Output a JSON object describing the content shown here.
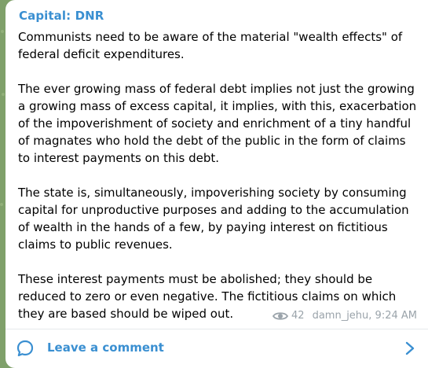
{
  "post": {
    "channel_name": "Capital: DNR",
    "paragraphs": [
      "Communists need to be aware of the material \"wealth effects\" of federal deficit expenditures.",
      "The ever growing mass of federal debt implies not just the growing a growing mass of excess capital, it implies, with this, exacerbation of the impoverishment of society and enrichment of a tiny handful of magnates who hold the debt of the public in the form of claims to interest payments on this debt.",
      "The state is, simultaneously, impoverishing society by consuming capital for unproductive purposes and adding to the accumulation of wealth in the hands of a few, by paying interest on fictitious claims to public revenues.",
      "These interest payments must be abolished; they should be reduced to zero or even negative. The fictitious claims on which they are based should be wiped out."
    ],
    "views": "42",
    "author_time": "damn_jehu, 9:24 AM"
  },
  "comments": {
    "label": "Leave a comment"
  },
  "icons": {
    "views": "eye-icon",
    "comment": "comment-bubble-icon",
    "open": "chevron-right-icon"
  },
  "colors": {
    "accent": "#3a8fd1",
    "meta": "#9aa3aa",
    "background": "#7fa06a",
    "bubble": "#ffffff"
  }
}
